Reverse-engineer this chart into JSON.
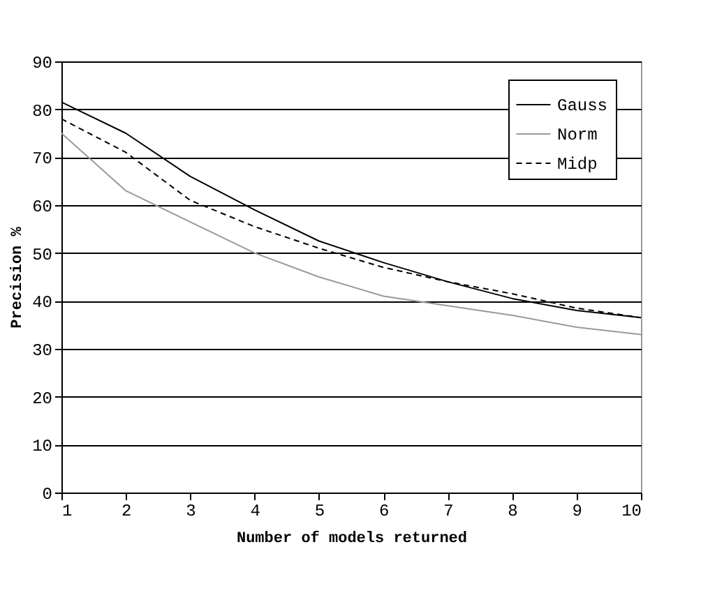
{
  "chart_data": {
    "type": "line",
    "xlabel": "Number of models returned",
    "ylabel": "Precision %",
    "x": [
      1,
      2,
      3,
      4,
      5,
      6,
      7,
      8,
      9,
      10
    ],
    "series": [
      {
        "name": "Gauss",
        "color": "#000000",
        "values": [
          81.5,
          75,
          66,
          59,
          52.5,
          48,
          44,
          40.5,
          38,
          36.5
        ]
      },
      {
        "name": "Norm",
        "color": "#999999",
        "values": [
          75,
          63,
          56.5,
          50,
          45,
          41,
          39,
          37,
          34.5,
          33
        ]
      },
      {
        "name": "Midp",
        "color": "#000000",
        "line_style": "dashed",
        "values": [
          78,
          71,
          61,
          55.5,
          51,
          47,
          44,
          41.5,
          38.5,
          36.5
        ]
      }
    ],
    "xlim": [
      1,
      10
    ],
    "xticks": [
      1,
      2,
      3,
      4,
      5,
      6,
      7,
      8,
      9,
      10
    ],
    "ylim": [
      0,
      90
    ],
    "yticks": [
      0,
      10,
      20,
      30,
      40,
      50,
      60,
      70,
      80,
      90
    ],
    "grid": "y",
    "legend": "top right",
    "marker": "none",
    "line_style": "solid"
  }
}
